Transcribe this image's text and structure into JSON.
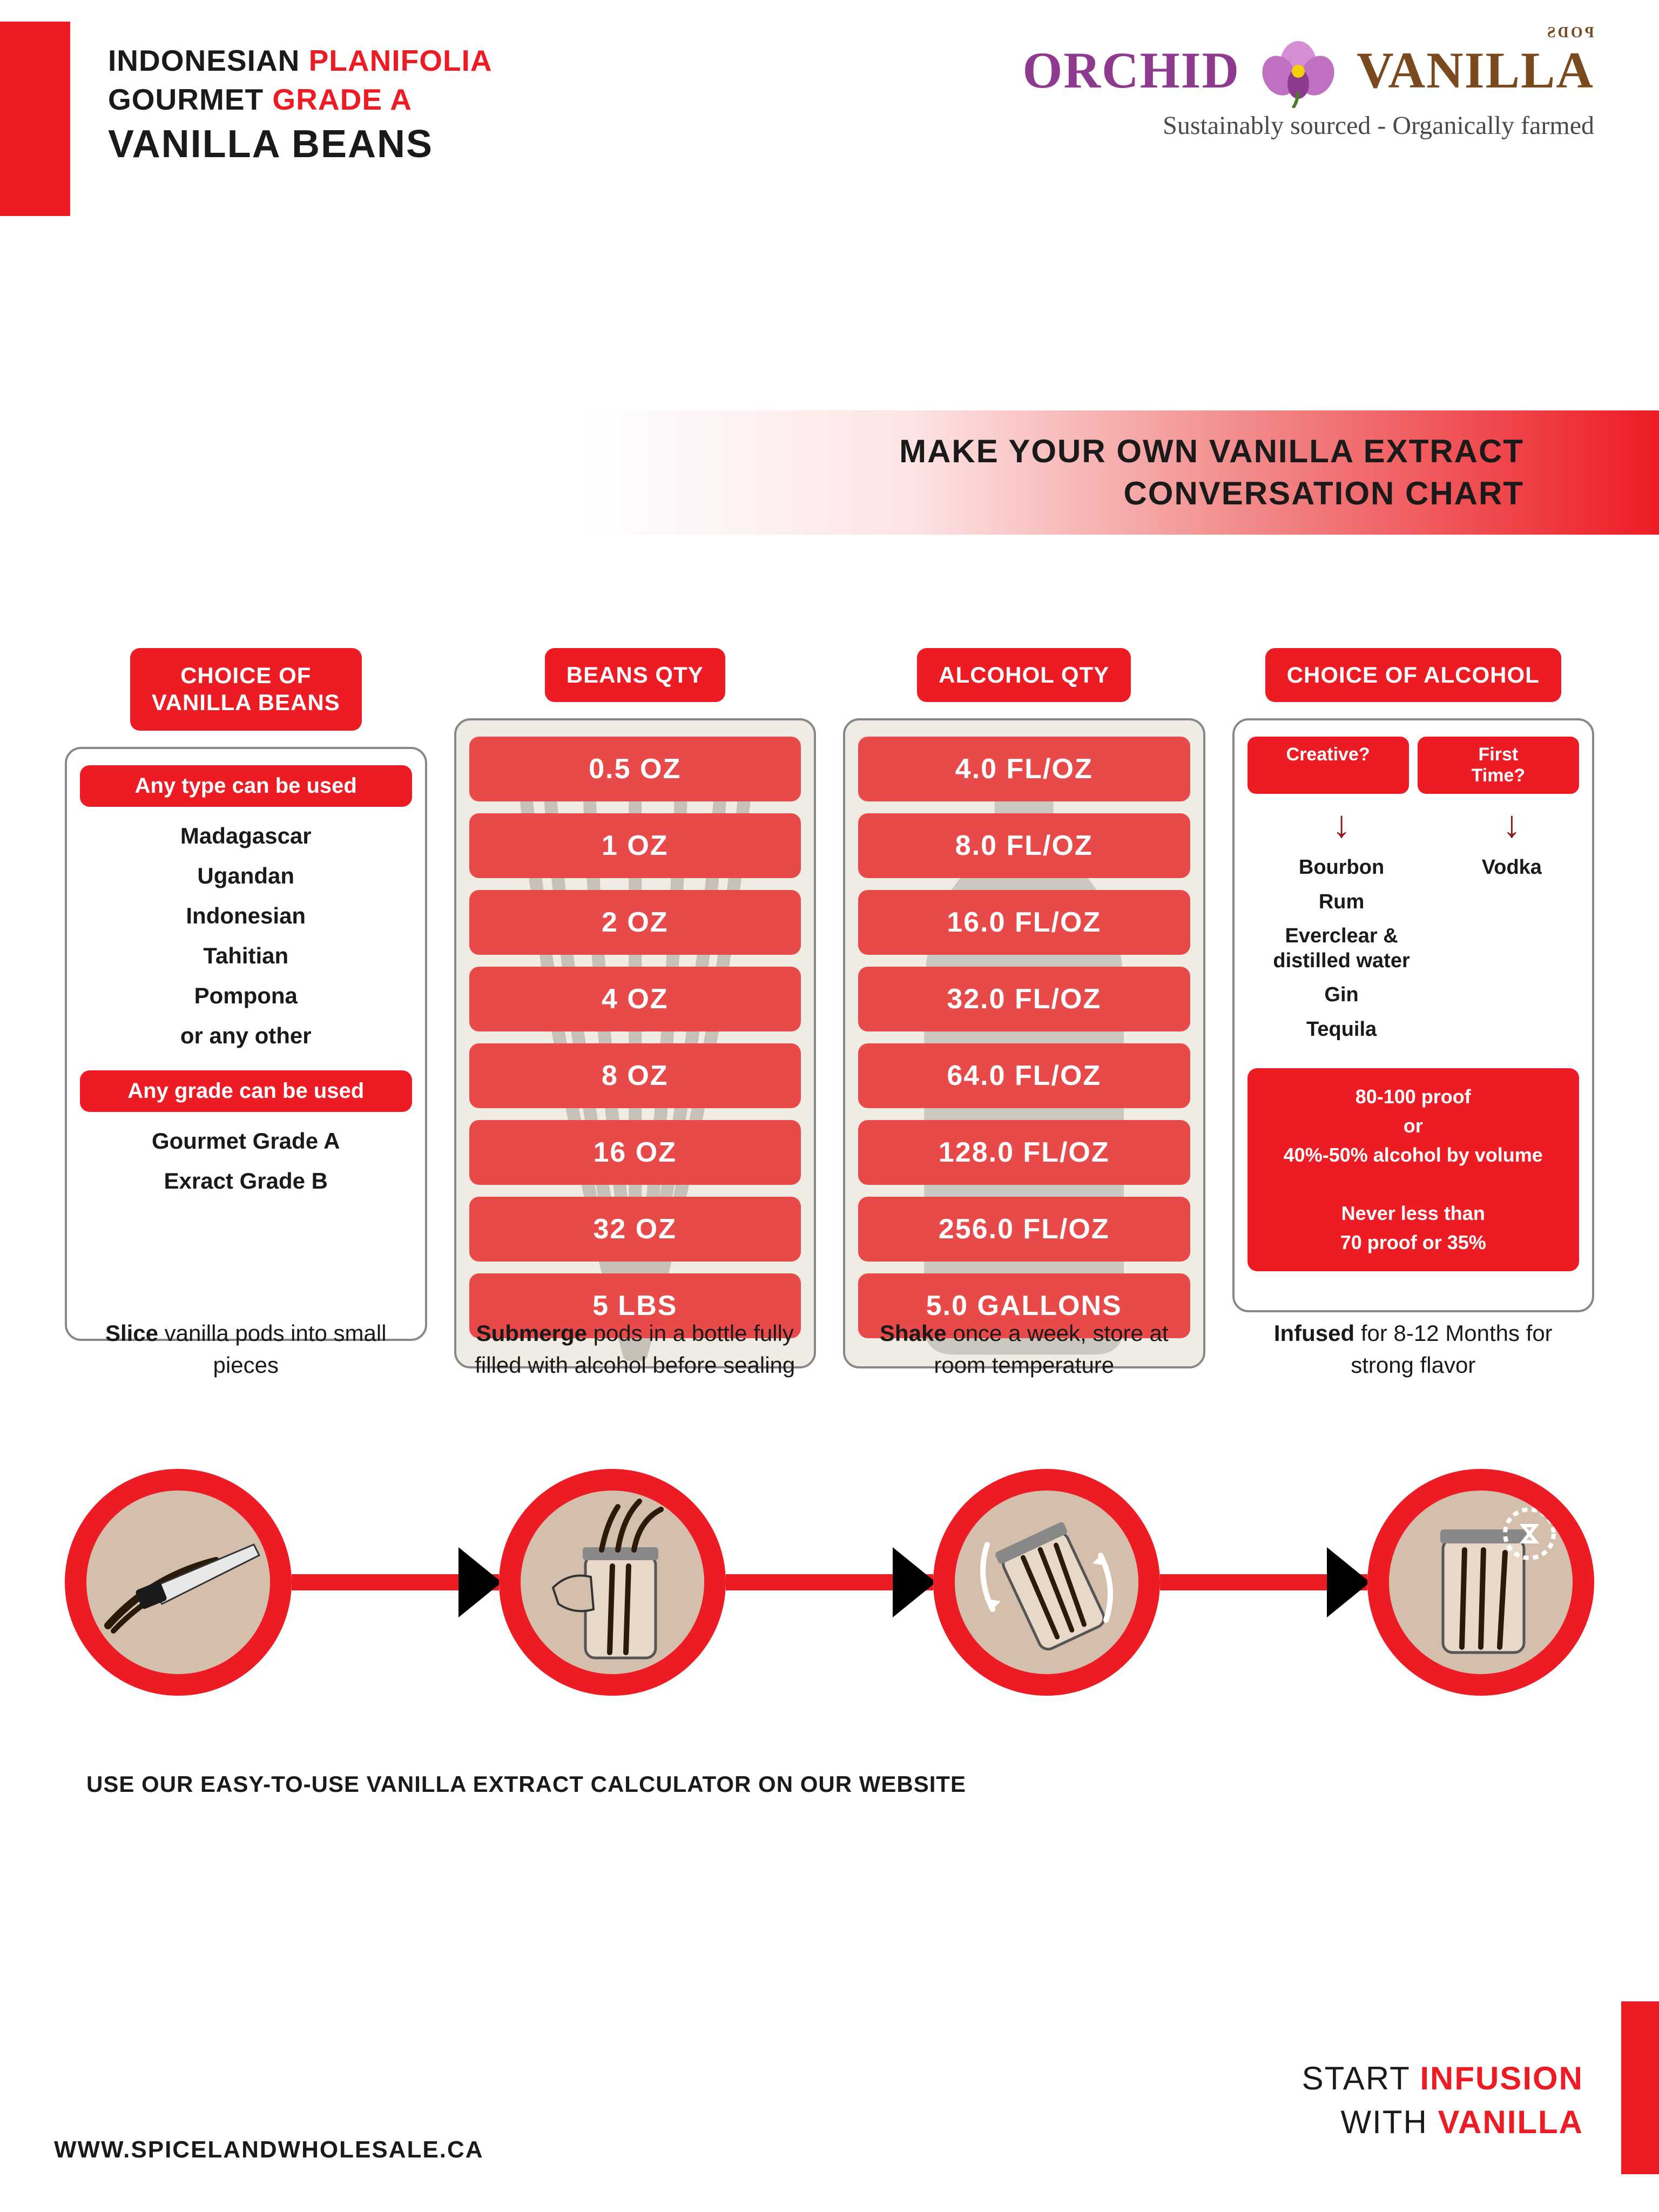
{
  "colors": {
    "accent": "#ed1c24",
    "accent_light": "#e84a4a",
    "text": "#1a1a1a",
    "brand_purple": "#8e3a8e",
    "brand_brown": "#7a4a1e",
    "inner_circle": "#d4beac"
  },
  "header": {
    "line1_a": "INDONESIAN",
    "line1_b": "PLANIFOLIA",
    "line2_a": "GOURMET",
    "line2_b": "GRADE A",
    "line3": "VANILLA BEANS"
  },
  "logo": {
    "left": "ORCHID",
    "right": "VANILLA",
    "pods": "PODS",
    "tagline": "Sustainably sourced - Organically farmed"
  },
  "banner": {
    "line1": "MAKE YOUR OWN VANILLA EXTRACT",
    "line2": "CONVERSATION CHART"
  },
  "col1": {
    "header": "CHOICE OF\nVANILLA BEANS",
    "pill1": "Any type can be used",
    "types": [
      "Madagascar",
      "Ugandan",
      "Indonesian",
      "Tahitian",
      "Pompona",
      "or any other"
    ],
    "pill2": "Any grade can be used",
    "grades": [
      "Gourmet Grade A",
      "Exract Grade B"
    ]
  },
  "col2": {
    "header": "BEANS QTY",
    "items": [
      "0.5 OZ",
      "1 OZ",
      "2 OZ",
      "4 OZ",
      "8 OZ",
      "16 OZ",
      "32 OZ",
      "5 LBS"
    ]
  },
  "col3": {
    "header": "ALCOHOL QTY",
    "items": [
      "4.0 FL/OZ",
      "8.0 FL/OZ",
      "16.0 FL/OZ",
      "32.0 FL/OZ",
      "64.0 FL/OZ",
      "128.0 FL/OZ",
      "256.0 FL/OZ",
      "5.0 GALLONS"
    ]
  },
  "col4": {
    "header": "CHOICE OF ALCOHOL",
    "creative": "Creative?",
    "first": "First Time?",
    "creative_list": [
      "Bourbon",
      "Rum",
      "Everclear & distilled water",
      "Gin",
      "Tequila"
    ],
    "first_list": [
      "Vodka"
    ],
    "proof": "80-100 proof\nor\n40%-50% alcohol by volume\n\nNever less than\n70 proof or 35%"
  },
  "instructions": [
    {
      "b": "Slice",
      "rest": " vanilla pods into small pieces"
    },
    {
      "b": "Submerge",
      "rest": " pods in a bottle fully filled with alcohol before sealing"
    },
    {
      "b": "Shake",
      "rest": " once a week, store at room temperature"
    },
    {
      "b": "Infused",
      "rest": " for 8-12 Months for strong flavor"
    }
  ],
  "calculator": "USE OUR EASY-TO-USE VANILLA EXTRACT CALCULATOR ON OUR WEBSITE",
  "footer": {
    "l1a": "START",
    "l1b": "INFUSION",
    "l2a": "WITH",
    "l2b": "VANILLA",
    "url": "WWW.SPICELANDWHOLESALE.CA"
  }
}
